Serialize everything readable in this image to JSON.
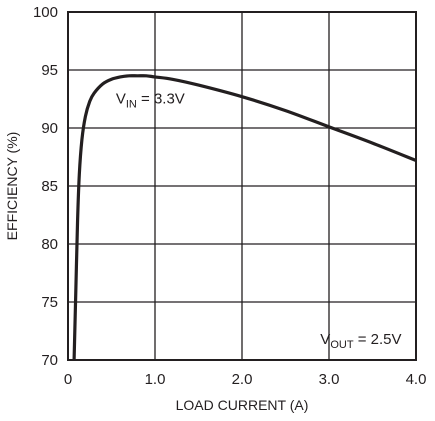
{
  "chart_data": {
    "type": "line",
    "title": "",
    "xlabel": "LOAD CURRENT (A)",
    "ylabel": "EFFICIENCY (%)",
    "xlim": [
      0,
      4.0
    ],
    "ylim": [
      70,
      100
    ],
    "x_ticks": [
      0,
      1.0,
      2.0,
      3.0,
      4.0
    ],
    "x_tick_labels": [
      "0",
      "1.0",
      "2.0",
      "3.0",
      "4.0"
    ],
    "y_ticks": [
      70,
      75,
      80,
      85,
      90,
      95,
      100
    ],
    "y_tick_labels": [
      "70",
      "75",
      "80",
      "85",
      "90",
      "95",
      "100"
    ],
    "grid": true,
    "series": [
      {
        "x": [
          0.07,
          0.09,
          0.11,
          0.13,
          0.16,
          0.2,
          0.25,
          0.3,
          0.4,
          0.5,
          0.6,
          0.7,
          0.8,
          0.9,
          1.0,
          1.2,
          1.5,
          2.0,
          2.5,
          3.0,
          3.5,
          4.0
        ],
        "values": [
          70.0,
          76.0,
          82.0,
          86.0,
          89.0,
          91.0,
          92.3,
          93.0,
          93.8,
          94.2,
          94.4,
          94.5,
          94.5,
          94.5,
          94.4,
          94.2,
          93.7,
          92.7,
          91.5,
          90.1,
          88.7,
          87.2
        ]
      }
    ],
    "annotations": [
      {
        "main": "V",
        "sub": "IN",
        "rest": " = 3.3V",
        "x": 0.55,
        "y": 92.1
      },
      {
        "main": "V",
        "sub": "OUT",
        "rest": " = 2.5V",
        "x": 2.9,
        "y": 71.4
      }
    ]
  }
}
